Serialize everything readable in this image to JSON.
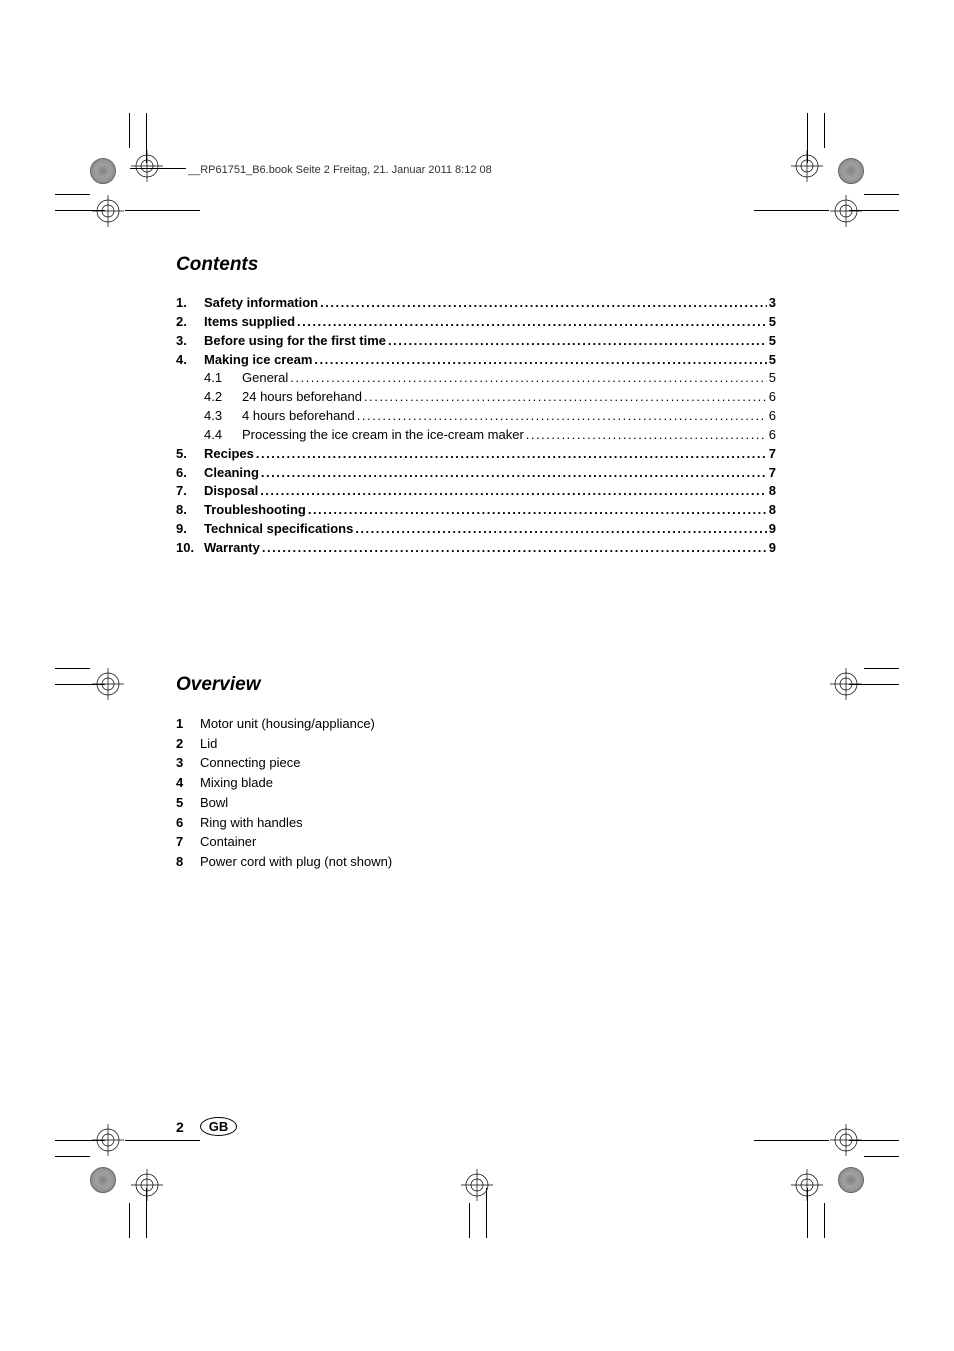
{
  "header": {
    "text": "__RP61751_B6.book  Seite 2  Freitag, 21. Januar 2011  8:12 08"
  },
  "contents": {
    "title": "Contents",
    "items": [
      {
        "num": "1.",
        "title": "Safety information ",
        "page": "3",
        "bold": true
      },
      {
        "num": "2.",
        "title": "Items supplied ",
        "page": "5",
        "bold": true
      },
      {
        "num": "3.",
        "title": "Before using for the first time ",
        "page": "5",
        "bold": true
      },
      {
        "num": "4.",
        "title": "Making ice cream ",
        "page": "5",
        "bold": true
      },
      {
        "num": "4.1",
        "title": "General",
        "page": " 5",
        "sub": true
      },
      {
        "num": "4.2",
        "title": "24 hours beforehand",
        "page": " 6",
        "sub": true
      },
      {
        "num": "4.3",
        "title": "4 hours beforehand",
        "page": " 6",
        "sub": true
      },
      {
        "num": "4.4",
        "title": "Processing the ice cream in the ice-cream maker",
        "page": " 6",
        "sub": true
      },
      {
        "num": "5.",
        "title": "Recipes ",
        "page": "7",
        "bold": true
      },
      {
        "num": "6.",
        "title": "Cleaning ",
        "page": "7",
        "bold": true
      },
      {
        "num": "7.",
        "title": "Disposal ",
        "page": "8",
        "bold": true
      },
      {
        "num": "8.",
        "title": "Troubleshooting ",
        "page": "8",
        "bold": true
      },
      {
        "num": "9.",
        "title": "Technical specifications ",
        "page": "9",
        "bold": true
      },
      {
        "num": "10.",
        "title": "Warranty ",
        "page": "9",
        "bold": true
      }
    ]
  },
  "overview": {
    "title": "Overview",
    "items": [
      {
        "num": "1",
        "text": "Motor unit (housing/appliance)"
      },
      {
        "num": "2",
        "text": "Lid"
      },
      {
        "num": "3",
        "text": "Connecting piece"
      },
      {
        "num": "4",
        "text": "Mixing blade"
      },
      {
        "num": "5",
        "text": "Bowl"
      },
      {
        "num": "6",
        "text": "Ring with handles"
      },
      {
        "num": "7",
        "text": "Container"
      },
      {
        "num": "8",
        "text": "Power cord with plug (not shown)"
      }
    ]
  },
  "footer": {
    "page_number": "2",
    "country": "GB"
  }
}
